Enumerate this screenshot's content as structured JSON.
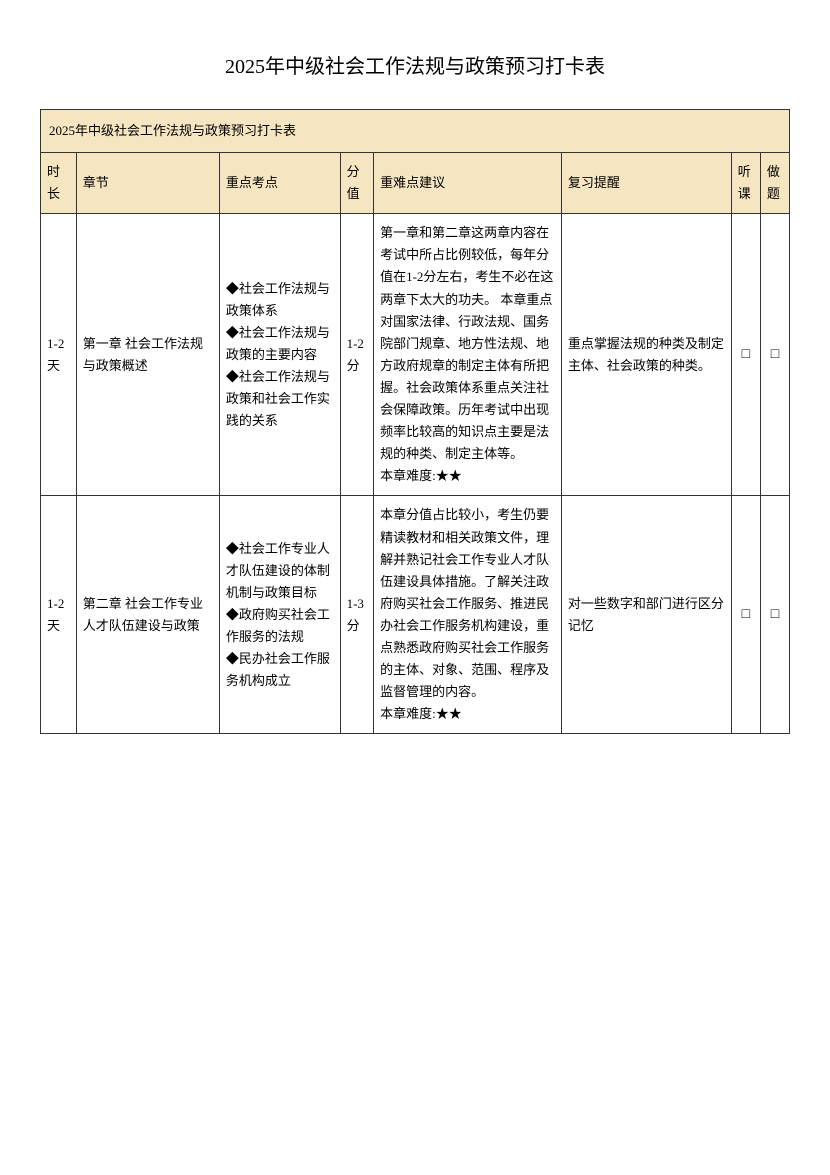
{
  "page_title": "2025年中级社会工作法规与政策预习打卡表",
  "table_caption": "2025年中级社会工作法规与政策预习打卡表",
  "columns": {
    "duration": "时长",
    "chapter": "章节",
    "keypoints": "重点考点",
    "score": "分值",
    "suggestion": "重难点建议",
    "reminder": "复习提醒",
    "listen": "听课",
    "exercise": "做题"
  },
  "rows": [
    {
      "duration": "1-2天",
      "chapter": "第一章 社会工作法规与政策概述",
      "keypoints": "◆社会工作法规与政策体系\n◆社会工作法规与政策的主要内容\n◆社会工作法规与政策和社会工作实践的关系",
      "score": "1-2分",
      "suggestion": "第一章和第二章这两章内容在考试中所占比例较低，每年分值在1-2分左右，考生不必在这两章下太大的功夫。 本章重点对国家法律、行政法规、国务院部门规章、地方性法规、地方政府规章的制定主体有所把握。社会政策体系重点关注社会保障政策。历年考试中出现频率比较高的知识点主要是法规的种类、制定主体等。\n本章难度:★★",
      "reminder": "重点掌握法规的种类及制定主体、社会政策的种类。",
      "listen": "□",
      "exercise": "□"
    },
    {
      "duration": "1-2天",
      "chapter": "第二章 社会工作专业人才队伍建设与政策",
      "keypoints": "◆社会工作专业人才队伍建设的体制机制与政策目标\n◆政府购买社会工作服务的法规\n◆民办社会工作服务机构成立",
      "score": "1-3分",
      "suggestion": "本章分值占比较小，考生仍要精读教材和相关政策文件，理解并熟记社会工作专业人才队伍建设具体措施。了解关注政府购买社会工作服务、推进民办社会工作服务机构建设，重点熟悉政府购买社会工作服务的主体、对象、范围、程序及监督管理的内容。\n本章难度:★★",
      "reminder": "对一些数字和部门进行区分记忆",
      "listen": "□",
      "exercise": "□"
    }
  ],
  "styles": {
    "header_bg": "#f5e5c0",
    "border_color": "#333333",
    "text_color": "#000000",
    "background_color": "#ffffff",
    "title_fontsize": 20,
    "body_fontsize": 13
  }
}
